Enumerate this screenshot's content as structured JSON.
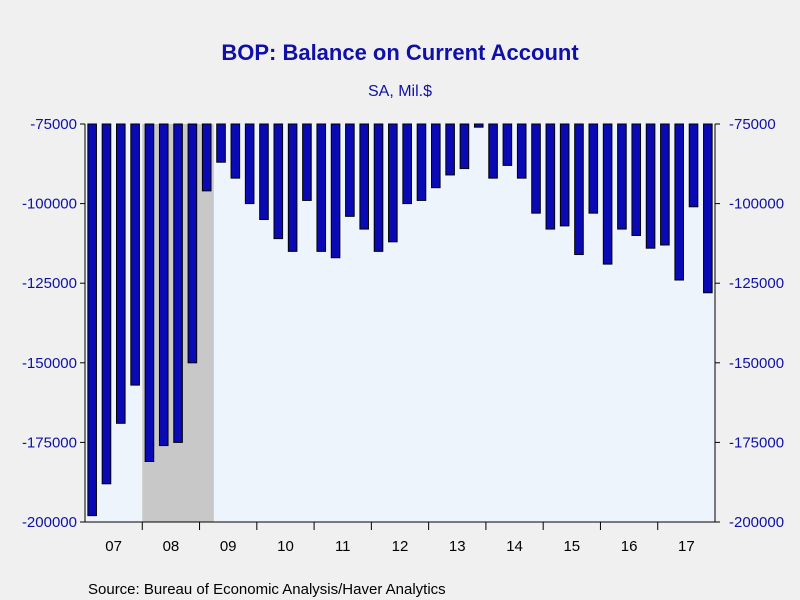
{
  "chart_data": {
    "type": "bar",
    "title": "BOP: Balance on Current Account",
    "subtitle": "SA, Mil.$",
    "source": "Source:  Bureau of Economic Analysis/Haver Analytics",
    "ylim": [
      -200000,
      -75000
    ],
    "yticks": [
      -75000,
      -100000,
      -125000,
      -150000,
      -175000,
      -200000
    ],
    "ytick_labels": [
      "-75000",
      "-100000",
      "-125000",
      "-150000",
      "-175000",
      "-200000"
    ],
    "x_labels": [
      "07",
      "08",
      "09",
      "10",
      "11",
      "12",
      "13",
      "14",
      "15",
      "16",
      "17"
    ],
    "recession_shading": {
      "from_quarter_index": 4,
      "to_quarter_index": 9,
      "color": "#c8c8c8"
    },
    "categories": [
      "2007Q1",
      "2007Q2",
      "2007Q3",
      "2007Q4",
      "2008Q1",
      "2008Q2",
      "2008Q3",
      "2008Q4",
      "2009Q1",
      "2009Q2",
      "2009Q3",
      "2009Q4",
      "2010Q1",
      "2010Q2",
      "2010Q3",
      "2010Q4",
      "2011Q1",
      "2011Q2",
      "2011Q3",
      "2011Q4",
      "2012Q1",
      "2012Q2",
      "2012Q3",
      "2012Q4",
      "2013Q1",
      "2013Q2",
      "2013Q3",
      "2013Q4",
      "2014Q1",
      "2014Q2",
      "2014Q3",
      "2014Q4",
      "2015Q1",
      "2015Q2",
      "2015Q3",
      "2015Q4",
      "2016Q1",
      "2016Q2",
      "2016Q3",
      "2016Q4",
      "2017Q1",
      "2017Q2",
      "2017Q3",
      "2017Q4"
    ],
    "values": [
      -198000,
      -188000,
      -169000,
      -157000,
      -181000,
      -176000,
      -175000,
      -150000,
      -96000,
      -87000,
      -92000,
      -100000,
      -105000,
      -111000,
      -115000,
      -99000,
      -115000,
      -117000,
      -104000,
      -108000,
      -115000,
      -112000,
      -100000,
      -99000,
      -95000,
      -91000,
      -89000,
      -76000,
      -92000,
      -88000,
      -92000,
      -103000,
      -108000,
      -107000,
      -116000,
      -103000,
      -119000,
      -108000,
      -110000,
      -114000,
      -113000,
      -124000,
      -101000,
      -128000
    ],
    "colors": {
      "bar_fill": "#0a0ab4",
      "bar_stroke": "#000000",
      "plot_bg": "#eef4fc",
      "page_bg": "#f0f0f0",
      "text_blue": "#1010a8"
    },
    "grid": false,
    "legend": "none"
  }
}
